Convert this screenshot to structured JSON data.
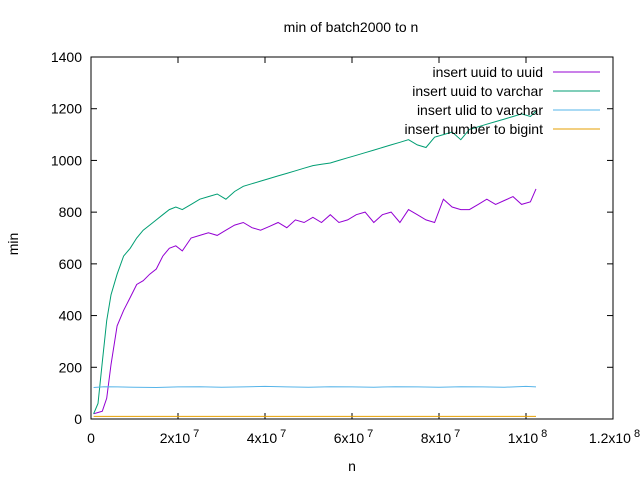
{
  "chart_data": {
    "type": "line",
    "title": "min of batch2000 to n",
    "xlabel": "n",
    "ylabel": "min",
    "xlim": [
      0,
      120000000
    ],
    "ylim": [
      0,
      1400
    ],
    "grid": false,
    "legend_position": "top-right",
    "x_ticks": [
      {
        "value": 0,
        "label": "0",
        "sup": ""
      },
      {
        "value": 20000000,
        "label": "2x10",
        "sup": "7"
      },
      {
        "value": 40000000,
        "label": "4x10",
        "sup": "7"
      },
      {
        "value": 60000000,
        "label": "6x10",
        "sup": "7"
      },
      {
        "value": 80000000,
        "label": "8x10",
        "sup": "7"
      },
      {
        "value": 100000000,
        "label": "1x10",
        "sup": "8"
      },
      {
        "value": 120000000,
        "label": "1.2x10",
        "sup": "8"
      }
    ],
    "y_ticks": [
      {
        "value": 0,
        "label": "0"
      },
      {
        "value": 200,
        "label": "200"
      },
      {
        "value": 400,
        "label": "400"
      },
      {
        "value": 600,
        "label": "600"
      },
      {
        "value": 800,
        "label": "800"
      },
      {
        "value": 1000,
        "label": "1000"
      },
      {
        "value": 1200,
        "label": "1200"
      },
      {
        "value": 1400,
        "label": "1400"
      }
    ],
    "series": [
      {
        "name": "insert uuid to uuid",
        "color": "#9400d3",
        "x": [
          0.6,
          1.6,
          2.6,
          3.6,
          4.6,
          6,
          7.5,
          9,
          10.5,
          12,
          13.5,
          15,
          16.5,
          18,
          19.5,
          21,
          23,
          25,
          27,
          29,
          31,
          33,
          35,
          37,
          39,
          41,
          43,
          45,
          47,
          49,
          51,
          53,
          55,
          57,
          59,
          61,
          63,
          65,
          67,
          69,
          71,
          73,
          75,
          77,
          79,
          81,
          83,
          85,
          87,
          89,
          91,
          93,
          95,
          97,
          99,
          101,
          102.3
        ],
        "y": [
          20,
          25,
          30,
          80,
          210,
          360,
          420,
          470,
          520,
          535,
          560,
          580,
          630,
          660,
          670,
          650,
          700,
          710,
          720,
          710,
          730,
          750,
          760,
          740,
          730,
          745,
          760,
          740,
          770,
          760,
          780,
          760,
          790,
          760,
          770,
          790,
          800,
          760,
          790,
          800,
          760,
          810,
          790,
          770,
          760,
          850,
          820,
          810,
          810,
          830,
          850,
          830,
          845,
          860,
          830,
          840,
          890
        ]
      },
      {
        "name": "insert uuid to varchar",
        "color": "#009e73",
        "x": [
          0.6,
          1.6,
          2.6,
          3.6,
          4.6,
          6,
          7.5,
          9,
          10.5,
          12,
          13.5,
          15,
          16.5,
          18,
          19.5,
          21,
          23,
          25,
          27,
          29,
          31,
          33,
          35,
          37,
          39,
          41,
          43,
          45,
          47,
          49,
          51,
          53,
          55,
          57,
          59,
          61,
          63,
          65,
          67,
          69,
          71,
          73,
          75,
          77,
          79,
          81,
          83,
          85,
          87,
          89,
          91,
          93,
          95,
          97,
          99,
          101,
          102.3
        ],
        "y": [
          20,
          60,
          220,
          380,
          480,
          560,
          630,
          660,
          700,
          730,
          750,
          770,
          790,
          810,
          820,
          810,
          830,
          850,
          860,
          870,
          850,
          880,
          900,
          910,
          920,
          930,
          940,
          950,
          960,
          970,
          980,
          985,
          990,
          1000,
          1010,
          1020,
          1030,
          1040,
          1050,
          1060,
          1070,
          1080,
          1060,
          1050,
          1090,
          1100,
          1110,
          1080,
          1120,
          1130,
          1140,
          1150,
          1160,
          1170,
          1180,
          1170,
          1190
        ]
      },
      {
        "name": "insert ulid to varchar",
        "color": "#56b4e9",
        "x": [
          0.6,
          3,
          6,
          10,
          15,
          20,
          25,
          30,
          35,
          40,
          45,
          50,
          55,
          60,
          65,
          70,
          75,
          80,
          85,
          90,
          95,
          100,
          102.3
        ],
        "y": [
          122,
          125,
          124,
          123,
          122,
          124,
          125,
          123,
          124,
          126,
          124,
          123,
          125,
          124,
          123,
          125,
          124,
          123,
          125,
          124,
          123,
          126,
          124
        ]
      },
      {
        "name": "insert number to bigint",
        "color": "#e69f00",
        "x": [
          0.6,
          10,
          20,
          30,
          40,
          50,
          60,
          70,
          80,
          90,
          100,
          102.3
        ],
        "y": [
          10,
          10,
          10,
          10,
          10,
          10,
          10,
          10,
          10,
          10,
          10,
          10
        ]
      }
    ]
  }
}
